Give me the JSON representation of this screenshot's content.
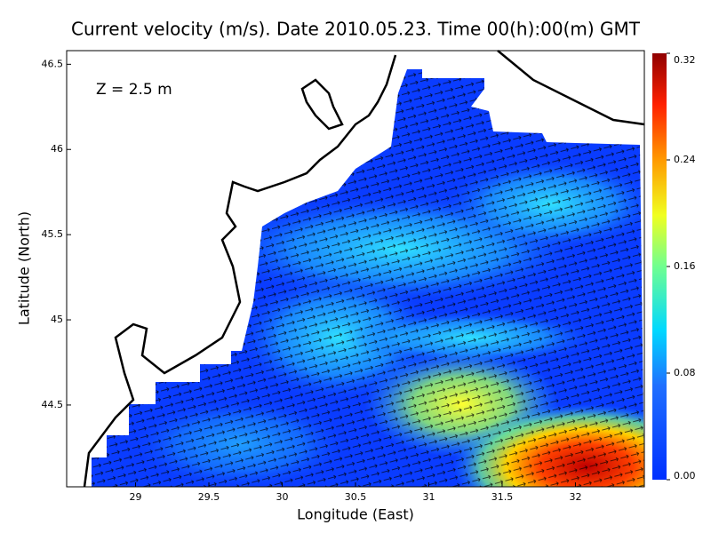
{
  "chart_data": {
    "type": "map",
    "title": "Current velocity (m/s). Date 2010.05.23. Time 00(h):00(m) GMT",
    "annotation": "Z = 2.5 m",
    "x_label": "Longitude (East)",
    "y_label": "Latitude (North)",
    "xlim": [
      28.53,
      32.47
    ],
    "xticks": [
      29,
      29.5,
      30,
      30.5,
      31,
      31.5,
      32
    ],
    "ylim": [
      44.02,
      46.58
    ],
    "yticks": [
      44.5,
      45,
      45.5,
      46,
      46.5
    ],
    "clim": [
      0,
      0.32
    ],
    "cticks": [
      {
        "value": 0,
        "label": "0.00"
      },
      {
        "value": 0.08,
        "label": "0.08"
      },
      {
        "value": 0.16,
        "label": "0.16"
      },
      {
        "value": 0.24,
        "label": "0.24"
      },
      {
        "value": 0.32,
        "label": "0.32"
      }
    ]
  }
}
